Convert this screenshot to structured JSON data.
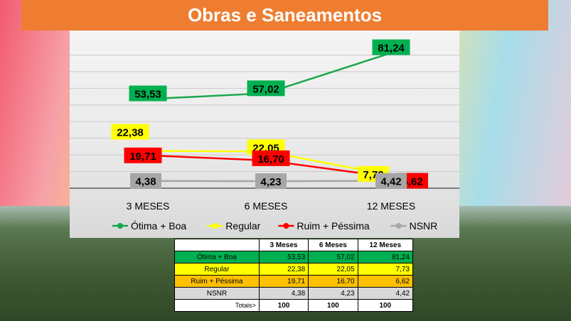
{
  "page_title": "Obras e Saneamentos",
  "chart_data": {
    "type": "line",
    "categories": [
      "3 MESES",
      "6 MESES",
      "12 MESES"
    ],
    "series": [
      {
        "name": "Ótima + Boa",
        "values": [
          53.53,
          57.02,
          81.24
        ],
        "labels": [
          "53,53",
          "57,02",
          "81,24"
        ],
        "color": "#1aa64c",
        "label_bg": "#00b050"
      },
      {
        "name": "Regular",
        "values": [
          22.38,
          22.05,
          7.73
        ],
        "labels": [
          "22,38",
          "22,05",
          "7,73"
        ],
        "color": "#ffff00",
        "label_bg": "#ffff00"
      },
      {
        "name": "Ruim + Péssima",
        "values": [
          19.71,
          16.7,
          6.62
        ],
        "labels": [
          "19,71",
          "16,70",
          "6,62"
        ],
        "color": "#ff0000",
        "label_bg": "#ff0000"
      },
      {
        "name": "NSNR",
        "values": [
          4.38,
          4.23,
          4.42
        ],
        "labels": [
          "4,38",
          "4,23",
          "4,42"
        ],
        "color": "#a6a6a6",
        "label_bg": "#a6a6a6"
      }
    ],
    "grid": true,
    "legend_position": "bottom"
  },
  "table": {
    "headers": [
      "",
      "3 Meses",
      "6 Meses",
      "12 Meses"
    ],
    "rows": [
      {
        "label": "Ótima + Boa",
        "cells": [
          "53,53",
          "57,02",
          "81,24"
        ]
      },
      {
        "label": "Regular",
        "cells": [
          "22,38",
          "22,05",
          "7,73"
        ]
      },
      {
        "label": "Ruim + Péssima",
        "cells": [
          "19,71",
          "16,70",
          "6,62"
        ]
      },
      {
        "label": "NSNR",
        "cells": [
          "4,38",
          "4,23",
          "4,42"
        ]
      }
    ],
    "totals_label": "Totais>",
    "totals": [
      "100",
      "100",
      "100"
    ]
  }
}
